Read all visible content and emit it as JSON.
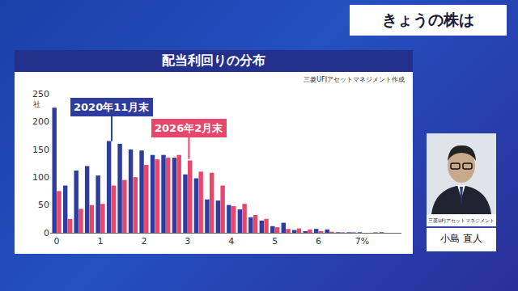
{
  "header": "きょうの株は",
  "person": {
    "affiliation": "三菱UFJアセットマネジメント",
    "name": "小島 直人"
  },
  "chart_data": {
    "type": "bar",
    "title": "配当利回りの分布",
    "source": "三菱UFJアセットマネジメント作成",
    "ylabel": "社",
    "x": [
      0,
      0.25,
      0.5,
      0.75,
      1,
      1.25,
      1.5,
      1.75,
      2,
      2.25,
      2.5,
      2.75,
      3,
      3.25,
      3.5,
      3.75,
      4,
      4.25,
      4.5,
      4.75,
      5,
      5.25,
      5.5,
      5.75,
      6,
      6.25,
      6.5,
      6.75,
      7,
      7.25,
      7.5
    ],
    "series": [
      {
        "name": "2020年11月末",
        "color": "#2e3c9e",
        "values": [
          225,
          85,
          112,
          120,
          103,
          165,
          160,
          150,
          148,
          140,
          140,
          135,
          105,
          98,
          60,
          58,
          50,
          42,
          28,
          22,
          12,
          18,
          5,
          3,
          7,
          6,
          1,
          1,
          1,
          0,
          1
        ]
      },
      {
        "name": "2026年2月末",
        "color": "#e8476b",
        "values": [
          75,
          25,
          43,
          50,
          52,
          85,
          95,
          100,
          122,
          132,
          135,
          140,
          130,
          110,
          108,
          85,
          48,
          52,
          32,
          25,
          10,
          7,
          8,
          6,
          3,
          2,
          1,
          1,
          0,
          1,
          0
        ]
      }
    ],
    "xlim": [
      -0.15,
      7.9
    ],
    "xticks": [
      0,
      1,
      2,
      3,
      4,
      5,
      6,
      {
        "value": 7,
        "label": "7%"
      }
    ],
    "ylim": [
      0,
      250
    ],
    "yticks": [
      0,
      50,
      100,
      150,
      200,
      250
    ],
    "grid": false
  }
}
